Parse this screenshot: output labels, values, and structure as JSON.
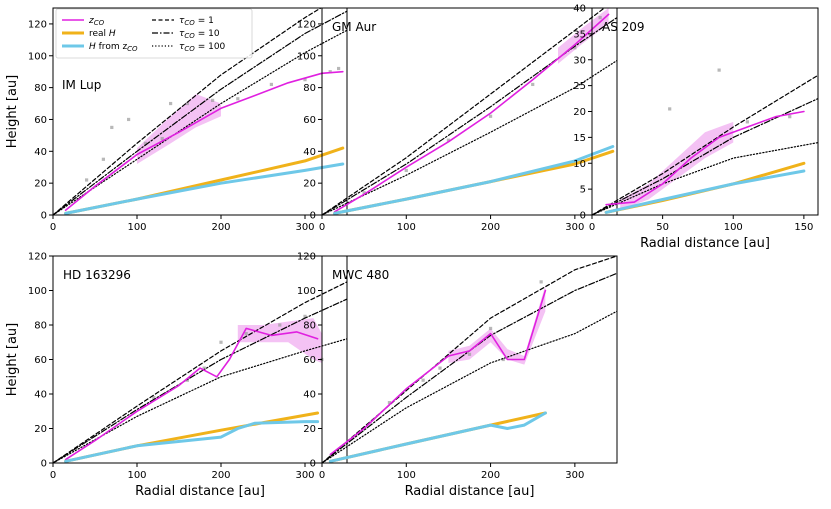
{
  "colors": {
    "zco": "#e020e0",
    "zco_band": "#f0a8f0",
    "realH": "#f0b21a",
    "Hzco": "#6ec8e8",
    "overlap": "#7dae5c",
    "scatter": "#9a9a9a",
    "tau": "#000000"
  },
  "legend": {
    "zco": "z",
    "zco_sub": "CO",
    "realH": "real ",
    "realH_italic": "H",
    "Hzco_italic": "H",
    "Hzco_text": " from z",
    "Hzco_sub": "CO",
    "tau1_sym": "τ",
    "tau1_sub": "CO",
    "tau1_val": " = 1",
    "tau10_sym": "τ",
    "tau10_sub": "CO",
    "tau10_val": " = 10",
    "tau100_sym": "τ",
    "tau100_sub": "CO",
    "tau100_val": " = 100"
  },
  "chart_data": [
    {
      "type": "line",
      "title": "IM Lup",
      "xlabel": "",
      "ylabel": "Height [au]",
      "xlim": [
        0,
        350
      ],
      "ylim": [
        0,
        130
      ],
      "xticks": [
        0,
        100,
        200,
        300
      ],
      "yticks": [
        0,
        20,
        40,
        60,
        80,
        100,
        120
      ],
      "series": [
        {
          "name": "tau_CO = 1",
          "style": "dashed",
          "x": [
            0,
            100,
            200,
            300,
            350
          ],
          "y": [
            0,
            45,
            88,
            124,
            140
          ]
        },
        {
          "name": "tau_CO = 10",
          "style": "dashdot",
          "x": [
            0,
            100,
            200,
            300,
            350
          ],
          "y": [
            0,
            40,
            79,
            114,
            128
          ]
        },
        {
          "name": "tau_CO = 100",
          "style": "dotted",
          "x": [
            0,
            100,
            200,
            300,
            350
          ],
          "y": [
            0,
            35,
            70,
            102,
            116
          ]
        },
        {
          "name": "z_CO",
          "style": "solid",
          "x": [
            15,
            50,
            100,
            150,
            200,
            240,
            280,
            320,
            345
          ],
          "y": [
            3,
            18,
            38,
            52,
            67,
            75,
            83,
            89,
            90
          ]
        },
        {
          "name": "real H",
          "style": "solid",
          "x": [
            15,
            100,
            200,
            300,
            345
          ],
          "y": [
            1,
            10,
            22,
            34,
            42
          ]
        },
        {
          "name": "H from z_CO",
          "style": "solid",
          "x": [
            15,
            100,
            200,
            300,
            345
          ],
          "y": [
            1,
            10,
            20,
            28,
            32
          ]
        }
      ],
      "band": {
        "x": [
          100,
          140,
          170,
          200
        ],
        "lo": [
          32,
          45,
          55,
          62
        ],
        "hi": [
          42,
          62,
          76,
          70
        ]
      },
      "scatter": {
        "x": [
          40,
          60,
          70,
          90,
          110,
          130,
          140,
          160,
          190,
          220,
          260,
          300,
          330,
          340
        ],
        "y": [
          22,
          35,
          55,
          60,
          45,
          48,
          70,
          70,
          72,
          73,
          82,
          85,
          90,
          92
        ]
      }
    },
    {
      "type": "line",
      "title": "GM Aur",
      "xlabel": "",
      "ylabel": "",
      "xlim": [
        0,
        350
      ],
      "ylim": [
        0,
        130
      ],
      "xticks": [
        0,
        100,
        200,
        300
      ],
      "yticks": [
        0,
        20,
        40,
        60,
        80,
        100,
        120
      ],
      "series": [
        {
          "name": "tau_CO = 1",
          "style": "dashed",
          "x": [
            0,
            100,
            200,
            300,
            350
          ],
          "y": [
            0,
            36,
            76,
            116,
            136
          ]
        },
        {
          "name": "tau_CO = 10",
          "style": "dashdot",
          "x": [
            0,
            100,
            200,
            300,
            350
          ],
          "y": [
            0,
            32,
            68,
            106,
            124
          ]
        },
        {
          "name": "tau_CO = 100",
          "style": "dotted",
          "x": [
            0,
            100,
            200,
            300,
            350
          ],
          "y": [
            0,
            25,
            52,
            80,
            97
          ]
        },
        {
          "name": "z_CO",
          "style": "solid",
          "x": [
            15,
            50,
            100,
            150,
            200,
            250,
            300,
            340
          ],
          "y": [
            2,
            13,
            30,
            46,
            64,
            85,
            107,
            126
          ]
        },
        {
          "name": "real H",
          "style": "solid",
          "x": [
            15,
            100,
            200,
            300,
            345
          ],
          "y": [
            1,
            10,
            21,
            32,
            40
          ]
        },
        {
          "name": "H from z_CO",
          "style": "solid",
          "x": [
            15,
            100,
            200,
            300,
            345
          ],
          "y": [
            1,
            10,
            21,
            34,
            43
          ]
        }
      ],
      "band": {
        "x": [
          280,
          310,
          340
        ],
        "lo": [
          95,
          108,
          120
        ],
        "hi": [
          105,
          118,
          130
        ]
      },
      "scatter": {
        "x": [
          50,
          100,
          150,
          200,
          250,
          300,
          330
        ],
        "y": [
          14,
          28,
          47,
          62,
          82,
          105,
          124
        ]
      }
    },
    {
      "type": "line",
      "title": "AS 209",
      "xlabel": "Radial distance [au]",
      "ylabel": "",
      "xlim": [
        0,
        160
      ],
      "ylim": [
        0,
        40
      ],
      "xticks": [
        0,
        50,
        100,
        150
      ],
      "yticks": [
        0,
        5,
        10,
        15,
        20,
        25,
        30,
        35,
        40
      ],
      "series": [
        {
          "name": "tau_CO = 1",
          "style": "dashed",
          "x": [
            0,
            50,
            100,
            160
          ],
          "y": [
            0,
            8,
            17,
            27
          ]
        },
        {
          "name": "tau_CO = 10",
          "style": "dashdot",
          "x": [
            0,
            50,
            100,
            160
          ],
          "y": [
            0,
            7,
            15,
            22.5
          ]
        },
        {
          "name": "tau_CO = 100",
          "style": "dotted",
          "x": [
            0,
            50,
            100,
            160
          ],
          "y": [
            0,
            6,
            11,
            14
          ]
        },
        {
          "name": "z_CO",
          "style": "solid",
          "x": [
            10,
            30,
            50,
            70,
            90,
            110,
            130,
            150
          ],
          "y": [
            2,
            2.5,
            6,
            11,
            15,
            17,
            19,
            20
          ]
        },
        {
          "name": "real H",
          "style": "solid",
          "x": [
            10,
            50,
            100,
            150
          ],
          "y": [
            0.5,
            2.8,
            6,
            10
          ]
        },
        {
          "name": "H from z_CO",
          "style": "solid",
          "x": [
            10,
            50,
            100,
            150
          ],
          "y": [
            0.5,
            3,
            6,
            8.5
          ]
        }
      ],
      "band": {
        "x": [
          20,
          40,
          60,
          80,
          100
        ],
        "lo": [
          1,
          3,
          7,
          11,
          14
        ],
        "hi": [
          3,
          6,
          11,
          16,
          18
        ]
      },
      "scatter": {
        "x": [
          55,
          90,
          110,
          140
        ],
        "y": [
          20.5,
          28,
          18,
          19
        ]
      }
    },
    {
      "type": "line",
      "title": "HD 163296",
      "xlabel": "Radial distance [au]",
      "ylabel": "Height [au]",
      "xlim": [
        0,
        350
      ],
      "ylim": [
        0,
        120
      ],
      "xticks": [
        0,
        100,
        200,
        300
      ],
      "yticks": [
        0,
        20,
        40,
        60,
        80,
        100,
        120
      ],
      "series": [
        {
          "name": "tau_CO = 1",
          "style": "dashed",
          "x": [
            0,
            100,
            200,
            300,
            350
          ],
          "y": [
            0,
            33,
            65,
            93,
            105
          ]
        },
        {
          "name": "tau_CO = 10",
          "style": "dashdot",
          "x": [
            0,
            100,
            200,
            300,
            350
          ],
          "y": [
            0,
            31,
            60,
            84,
            95
          ]
        },
        {
          "name": "tau_CO = 100",
          "style": "dotted",
          "x": [
            0,
            100,
            200,
            300,
            350
          ],
          "y": [
            0,
            27,
            50,
            65,
            72
          ]
        },
        {
          "name": "z_CO",
          "style": "solid",
          "x": [
            15,
            50,
            100,
            150,
            175,
            195,
            210,
            230,
            260,
            290,
            315
          ],
          "y": [
            2,
            13,
            30,
            45,
            55,
            50,
            60,
            78,
            74,
            76,
            72
          ]
        },
        {
          "name": "real H",
          "style": "solid",
          "x": [
            15,
            100,
            200,
            315
          ],
          "y": [
            1,
            10,
            19,
            29
          ]
        },
        {
          "name": "H from z_CO",
          "style": "solid",
          "x": [
            15,
            100,
            200,
            220,
            240,
            300,
            315
          ],
          "y": [
            1,
            10,
            15,
            20,
            23,
            24,
            24
          ]
        }
      ],
      "band": {
        "x": [
          220,
          250,
          280,
          310,
          320
        ],
        "lo": [
          70,
          70,
          70,
          60,
          58
        ],
        "hi": [
          80,
          80,
          82,
          84,
          75
        ]
      },
      "scatter": {
        "x": [
          120,
          160,
          180,
          200,
          230,
          270,
          300,
          320
        ],
        "y": [
          38,
          48,
          55,
          70,
          75,
          80,
          85,
          60
        ]
      }
    },
    {
      "type": "line",
      "title": "MWC 480",
      "xlabel": "Radial distance [au]",
      "ylabel": "",
      "xlim": [
        0,
        350
      ],
      "ylim": [
        0,
        120
      ],
      "xticks": [
        0,
        100,
        200,
        300
      ],
      "yticks": [
        0,
        20,
        40,
        60,
        80,
        100,
        120
      ],
      "series": [
        {
          "name": "tau_CO = 1",
          "style": "dashed",
          "x": [
            0,
            100,
            200,
            300,
            350
          ],
          "y": [
            0,
            42,
            84,
            112,
            120
          ]
        },
        {
          "name": "tau_CO = 10",
          "style": "dashdot",
          "x": [
            0,
            100,
            200,
            300,
            350
          ],
          "y": [
            0,
            38,
            74,
            100,
            110
          ]
        },
        {
          "name": "tau_CO = 100",
          "style": "dotted",
          "x": [
            0,
            100,
            200,
            300,
            350
          ],
          "y": [
            0,
            32,
            58,
            75,
            88
          ]
        },
        {
          "name": "z_CO",
          "style": "solid",
          "x": [
            10,
            50,
            100,
            150,
            175,
            200,
            220,
            240,
            265
          ],
          "y": [
            5,
            20,
            43,
            62,
            65,
            75,
            60,
            60,
            100
          ]
        },
        {
          "name": "real H",
          "style": "solid",
          "x": [
            10,
            100,
            200,
            265
          ],
          "y": [
            1,
            11,
            22,
            29
          ]
        },
        {
          "name": "H from z_CO",
          "style": "solid",
          "x": [
            10,
            100,
            200,
            220,
            240,
            265
          ],
          "y": [
            1,
            11,
            22,
            20,
            22,
            29
          ]
        }
      ],
      "band": {
        "x": [
          150,
          175,
          200,
          220,
          240,
          265
        ],
        "lo": [
          58,
          60,
          70,
          60,
          57,
          88
        ],
        "hi": [
          65,
          68,
          78,
          66,
          62,
          103
        ]
      },
      "scatter": {
        "x": [
          80,
          120,
          140,
          175,
          200,
          215,
          260
        ],
        "y": [
          35,
          48,
          55,
          63,
          78,
          60,
          105
        ]
      }
    }
  ]
}
